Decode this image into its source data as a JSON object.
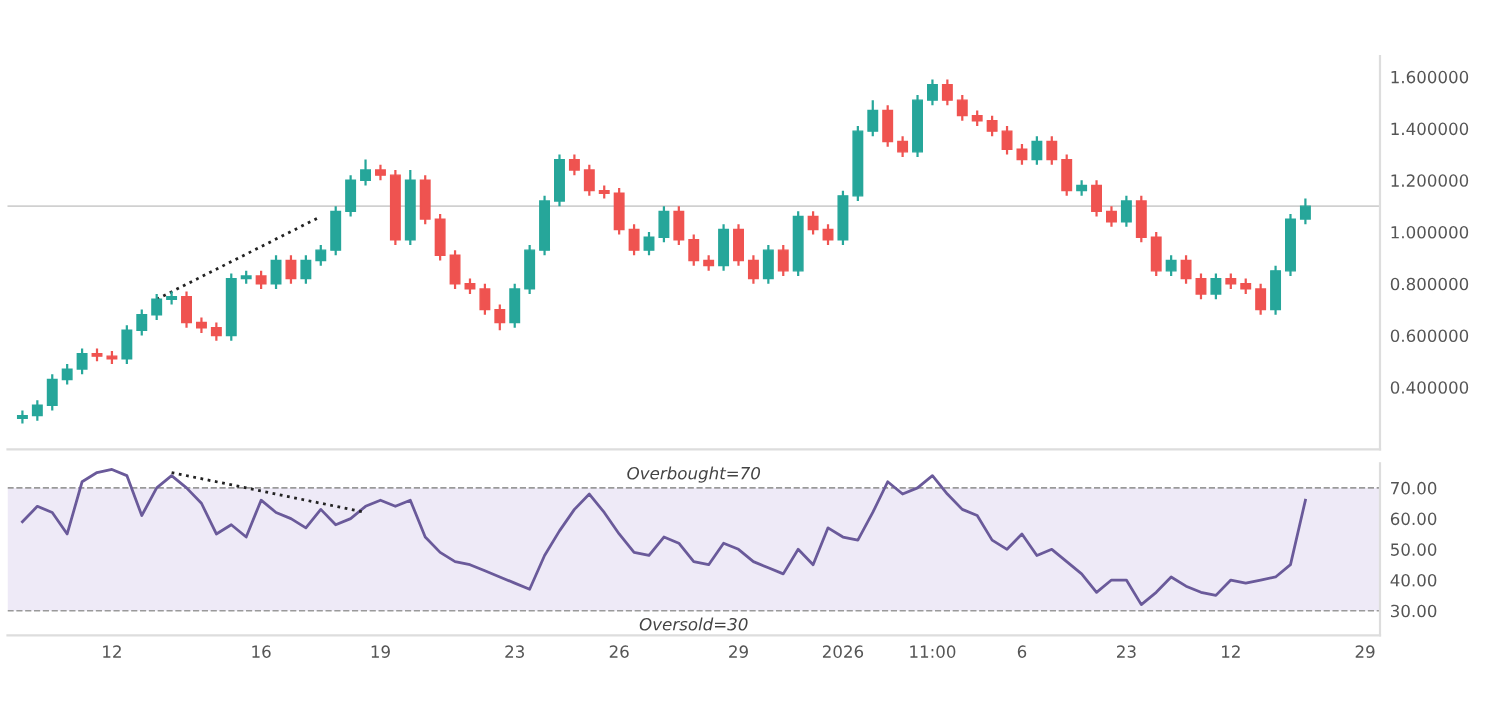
{
  "chart_data": [
    {
      "type": "candlestick",
      "categories": [
        null,
        null,
        null,
        null,
        null,
        null,
        null,
        null,
        null,
        null,
        null,
        null,
        null,
        null,
        null,
        null,
        null,
        null,
        null,
        null,
        null,
        null,
        null,
        null,
        null,
        null,
        null,
        null,
        null,
        null,
        null,
        null,
        null,
        null,
        null,
        null,
        null,
        null,
        null,
        null,
        null,
        null,
        null,
        null,
        null,
        null,
        null,
        null,
        null,
        null,
        null,
        null,
        null,
        null,
        null,
        null,
        null,
        null,
        null,
        null,
        null,
        null,
        null,
        null,
        null,
        null,
        null,
        null,
        null,
        null,
        null,
        null,
        null,
        null,
        null,
        null,
        null,
        null,
        null,
        null,
        null,
        null,
        null,
        null,
        null,
        null,
        null,
        null,
        null,
        null,
        null
      ],
      "ohlc": [
        [
          0.28,
          0.31,
          0.26,
          0.29
        ],
        [
          0.29,
          0.35,
          0.27,
          0.33
        ],
        [
          0.33,
          0.45,
          0.31,
          0.43
        ],
        [
          0.43,
          0.49,
          0.41,
          0.47
        ],
        [
          0.47,
          0.55,
          0.45,
          0.53
        ],
        [
          0.53,
          0.55,
          0.5,
          0.52
        ],
        [
          0.52,
          0.54,
          0.49,
          0.51
        ],
        [
          0.51,
          0.64,
          0.49,
          0.62
        ],
        [
          0.62,
          0.7,
          0.6,
          0.68
        ],
        [
          0.68,
          0.76,
          0.66,
          0.74
        ],
        [
          0.74,
          0.77,
          0.72,
          0.75
        ],
        [
          0.75,
          0.77,
          0.63,
          0.65
        ],
        [
          0.65,
          0.67,
          0.61,
          0.63
        ],
        [
          0.63,
          0.65,
          0.58,
          0.6
        ],
        [
          0.6,
          0.84,
          0.58,
          0.82
        ],
        [
          0.82,
          0.85,
          0.8,
          0.83
        ],
        [
          0.83,
          0.85,
          0.78,
          0.8
        ],
        [
          0.8,
          0.91,
          0.78,
          0.89
        ],
        [
          0.89,
          0.91,
          0.8,
          0.82
        ],
        [
          0.82,
          0.91,
          0.8,
          0.89
        ],
        [
          0.89,
          0.95,
          0.87,
          0.93
        ],
        [
          0.93,
          1.1,
          0.91,
          1.08
        ],
        [
          1.08,
          1.22,
          1.06,
          1.2
        ],
        [
          1.2,
          1.28,
          1.18,
          1.24
        ],
        [
          1.24,
          1.26,
          1.2,
          1.22
        ],
        [
          1.22,
          1.24,
          0.95,
          0.97
        ],
        [
          0.97,
          1.24,
          0.95,
          1.2
        ],
        [
          1.2,
          1.22,
          1.03,
          1.05
        ],
        [
          1.05,
          1.07,
          0.89,
          0.91
        ],
        [
          0.91,
          0.93,
          0.78,
          0.8
        ],
        [
          0.8,
          0.82,
          0.76,
          0.78
        ],
        [
          0.78,
          0.8,
          0.68,
          0.7
        ],
        [
          0.7,
          0.72,
          0.62,
          0.65
        ],
        [
          0.65,
          0.8,
          0.63,
          0.78
        ],
        [
          0.78,
          0.95,
          0.76,
          0.93
        ],
        [
          0.93,
          1.14,
          0.91,
          1.12
        ],
        [
          1.12,
          1.3,
          1.1,
          1.28
        ],
        [
          1.28,
          1.3,
          1.22,
          1.24
        ],
        [
          1.24,
          1.26,
          1.14,
          1.16
        ],
        [
          1.16,
          1.18,
          1.13,
          1.15
        ],
        [
          1.15,
          1.17,
          0.99,
          1.01
        ],
        [
          1.01,
          1.03,
          0.91,
          0.93
        ],
        [
          0.93,
          1.0,
          0.91,
          0.98
        ],
        [
          0.98,
          1.1,
          0.96,
          1.08
        ],
        [
          1.08,
          1.1,
          0.95,
          0.97
        ],
        [
          0.97,
          0.99,
          0.87,
          0.89
        ],
        [
          0.89,
          0.91,
          0.85,
          0.87
        ],
        [
          0.87,
          1.03,
          0.85,
          1.01
        ],
        [
          1.01,
          1.03,
          0.87,
          0.89
        ],
        [
          0.89,
          0.91,
          0.8,
          0.82
        ],
        [
          0.82,
          0.95,
          0.8,
          0.93
        ],
        [
          0.93,
          0.95,
          0.83,
          0.85
        ],
        [
          0.85,
          1.08,
          0.83,
          1.06
        ],
        [
          1.06,
          1.08,
          0.99,
          1.01
        ],
        [
          1.01,
          1.03,
          0.95,
          0.97
        ],
        [
          0.97,
          1.16,
          0.95,
          1.14
        ],
        [
          1.14,
          1.41,
          1.12,
          1.39
        ],
        [
          1.39,
          1.51,
          1.37,
          1.47
        ],
        [
          1.47,
          1.49,
          1.33,
          1.35
        ],
        [
          1.35,
          1.37,
          1.29,
          1.31
        ],
        [
          1.31,
          1.53,
          1.29,
          1.51
        ],
        [
          1.51,
          1.59,
          1.49,
          1.57
        ],
        [
          1.57,
          1.59,
          1.49,
          1.51
        ],
        [
          1.51,
          1.53,
          1.43,
          1.45
        ],
        [
          1.45,
          1.47,
          1.41,
          1.43
        ],
        [
          1.43,
          1.45,
          1.37,
          1.39
        ],
        [
          1.39,
          1.41,
          1.3,
          1.32
        ],
        [
          1.32,
          1.34,
          1.26,
          1.28
        ],
        [
          1.28,
          1.37,
          1.26,
          1.35
        ],
        [
          1.35,
          1.37,
          1.26,
          1.28
        ],
        [
          1.28,
          1.3,
          1.14,
          1.16
        ],
        [
          1.16,
          1.2,
          1.14,
          1.18
        ],
        [
          1.18,
          1.2,
          1.06,
          1.08
        ],
        [
          1.08,
          1.1,
          1.02,
          1.04
        ],
        [
          1.04,
          1.14,
          1.02,
          1.12
        ],
        [
          1.12,
          1.14,
          0.96,
          0.98
        ],
        [
          0.98,
          1.0,
          0.83,
          0.85
        ],
        [
          0.85,
          0.91,
          0.83,
          0.89
        ],
        [
          0.89,
          0.91,
          0.8,
          0.82
        ],
        [
          0.82,
          0.84,
          0.74,
          0.76
        ],
        [
          0.76,
          0.84,
          0.74,
          0.82
        ],
        [
          0.82,
          0.84,
          0.78,
          0.8
        ],
        [
          0.8,
          0.82,
          0.76,
          0.78
        ],
        [
          0.78,
          0.8,
          0.68,
          0.7
        ],
        [
          0.7,
          0.87,
          0.68,
          0.85
        ],
        [
          0.85,
          1.07,
          0.83,
          1.05
        ],
        [
          1.05,
          1.13,
          1.03,
          1.1
        ],
        null,
        null,
        null,
        null
      ],
      "colors": [
        "#26a69a",
        "#26a69a",
        "#26a69a",
        "#26a69a",
        "#26a69a",
        "#ef5350",
        "#ef5350",
        "#26a69a",
        "#26a69a",
        "#26a69a",
        "#26a69a",
        "#ef5350",
        "#ef5350",
        "#ef5350",
        "#26a69a",
        "#26a69a",
        "#ef5350",
        "#26a69a",
        "#ef5350",
        "#26a69a",
        "#26a69a",
        "#26a69a",
        "#26a69a",
        "#26a69a",
        "#ef5350",
        "#ef5350",
        "#26a69a",
        "#ef5350",
        "#ef5350",
        "#ef5350",
        "#ef5350",
        "#ef5350",
        "#ef5350",
        "#26a69a",
        "#26a69a",
        "#26a69a",
        "#26a69a",
        "#ef5350",
        "#ef5350",
        "#ef5350",
        "#ef5350",
        "#ef5350",
        "#26a69a",
        "#26a69a",
        "#ef5350",
        "#ef5350",
        "#ef5350",
        "#26a69a",
        "#ef5350",
        "#ef5350",
        "#26a69a",
        "#ef5350",
        "#26a69a",
        "#ef5350",
        "#ef5350",
        "#26a69a",
        "#26a69a",
        "#26a69a",
        "#ef5350",
        "#ef5350",
        "#26a69a",
        "#26a69a",
        "#ef5350",
        "#ef5350",
        "#ef5350",
        "#ef5350",
        "#ef5350",
        "#ef5350",
        "#26a69a",
        "#ef5350",
        "#ef5350",
        "#26a69a",
        "#ef5350",
        "#ef5350",
        "#26a69a",
        "#ef5350",
        "#ef5350",
        "#26a69a",
        "#ef5350",
        "#ef5350",
        "#26a69a",
        "#ef5350",
        "#ef5350",
        "#ef5350",
        "#26a69a",
        "#26a69a",
        "#26a69a",
        null,
        null,
        null,
        null
      ],
      "series": [
        {
          "type": "line",
          "color": "#222222",
          "line_style": "dotted",
          "values": [
            null,
            null,
            null,
            null,
            null,
            null,
            null,
            null,
            null,
            0.74,
            null,
            null,
            null,
            null,
            null,
            null,
            null,
            null,
            null,
            null,
            1.06,
            null,
            null,
            null,
            null,
            null,
            null,
            null,
            null,
            null,
            null,
            null,
            null,
            null,
            null,
            null,
            null,
            null,
            null,
            null,
            null,
            null,
            null,
            null,
            null,
            null,
            null,
            null,
            null,
            null,
            null,
            null,
            null,
            null,
            null,
            null,
            null,
            null,
            null,
            null,
            null,
            null,
            null,
            null,
            null,
            null,
            null,
            null,
            null,
            null,
            null,
            null,
            null,
            null,
            null,
            null,
            null,
            null,
            null,
            null,
            null,
            null,
            null,
            null,
            null,
            null,
            null,
            null,
            null,
            null,
            null
          ]
        }
      ],
      "ylim": [
        0.16,
        1.68
      ],
      "yticks": [
        {
          "value": 0.4,
          "label": "0.400000"
        },
        {
          "value": 0.6,
          "label": "0.600000"
        },
        {
          "value": 0.8,
          "label": "0.800000"
        },
        {
          "value": 1.0,
          "label": "1.000000"
        },
        {
          "value": 1.2,
          "label": "1.200000"
        },
        {
          "value": 1.4,
          "label": "1.400000"
        },
        {
          "value": 1.6,
          "label": "1.600000"
        }
      ],
      "ref_lines": [
        {
          "axis": "y",
          "value": 1.1,
          "color": "#d0d0d0",
          "line_style": "solid"
        }
      ],
      "tick_labels": "y"
    },
    {
      "type": "line",
      "categories": [
        null,
        null,
        null,
        null,
        null,
        null,
        "12",
        null,
        null,
        null,
        null,
        null,
        null,
        null,
        null,
        null,
        "16",
        null,
        null,
        null,
        null,
        null,
        null,
        null,
        "19",
        null,
        null,
        null,
        null,
        null,
        null,
        null,
        null,
        "23",
        null,
        null,
        null,
        null,
        null,
        null,
        "26",
        null,
        null,
        null,
        null,
        null,
        null,
        null,
        "29",
        null,
        null,
        null,
        null,
        null,
        null,
        "2026",
        null,
        null,
        null,
        null,
        null,
        "11:00",
        null,
        null,
        null,
        null,
        null,
        "6",
        null,
        null,
        null,
        null,
        null,
        null,
        "23",
        null,
        null,
        null,
        null,
        null,
        null,
        "12",
        null,
        null,
        null,
        null,
        null,
        null,
        null,
        null,
        "29"
      ],
      "series": [
        {
          "color": "#6a5a9a",
          "values": [
            59,
            64,
            62,
            55,
            72,
            75,
            76,
            74,
            61,
            70,
            74,
            70,
            65,
            55,
            58,
            54,
            66,
            62,
            60,
            57,
            63,
            58,
            60,
            64,
            66,
            64,
            66,
            54,
            49,
            46,
            45,
            43,
            41,
            39,
            37,
            48,
            56,
            63,
            68,
            62,
            55,
            49,
            48,
            54,
            52,
            46,
            45,
            52,
            50,
            46,
            44,
            42,
            50,
            45,
            57,
            54,
            53,
            62,
            72,
            68,
            70,
            74,
            68,
            63,
            61,
            53,
            50,
            55,
            48,
            50,
            46,
            42,
            36,
            40,
            40,
            32,
            36,
            41,
            38,
            36,
            35,
            40,
            39,
            40,
            41,
            45,
            66,
            null,
            null,
            null,
            null
          ]
        },
        {
          "color": "#222222",
          "line_style": "dotted",
          "values": [
            null,
            null,
            null,
            null,
            null,
            null,
            null,
            null,
            null,
            null,
            75,
            null,
            null,
            null,
            null,
            null,
            null,
            null,
            null,
            null,
            null,
            null,
            null,
            62,
            null,
            null,
            null,
            null,
            null,
            null,
            null,
            null,
            null,
            null,
            null,
            null,
            null,
            null,
            null,
            null,
            null,
            null,
            null,
            null,
            null,
            null,
            null,
            null,
            null,
            null,
            null,
            null,
            null,
            null,
            null,
            null,
            null,
            null,
            null,
            null,
            null,
            null,
            null,
            null,
            null,
            null,
            null,
            null,
            null,
            null,
            null,
            null,
            null,
            null,
            null,
            null,
            null,
            null,
            null,
            null,
            null,
            null,
            null,
            null,
            null,
            null,
            null,
            null,
            null,
            null,
            null
          ]
        }
      ],
      "ylim": [
        22,
        78
      ],
      "yticks": [
        {
          "value": 30,
          "label": "30.00"
        },
        {
          "value": 40,
          "label": "40.00"
        },
        {
          "value": 50,
          "label": "50.00"
        },
        {
          "value": 60,
          "label": "60.00"
        },
        {
          "value": 70,
          "label": "70.00"
        }
      ],
      "bands": [
        {
          "axis": "y",
          "from": 30,
          "to": 70,
          "color": "#eeeaf7"
        }
      ],
      "ref_lines": [
        {
          "axis": "y",
          "value": 70,
          "label": "Overbought=70",
          "color": "#9a9a9a",
          "line_style": "dashed"
        },
        {
          "axis": "y",
          "value": 30,
          "label": "Oversold=30",
          "color": "#9a9a9a",
          "line_style": "dashed"
        }
      ]
    }
  ]
}
